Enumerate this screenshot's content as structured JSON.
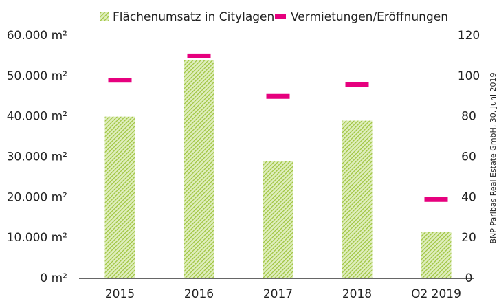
{
  "chart_data": {
    "type": "bar",
    "categories": [
      "2015",
      "2016",
      "2017",
      "2018",
      "Q2 2019"
    ],
    "series": [
      {
        "name": "Flächenumsatz in Citylagen",
        "color": "#9dc33b",
        "values": [
          40000,
          54000,
          29000,
          39000,
          11500
        ]
      },
      {
        "name": "Vermietungen/Eröffnungen",
        "color": "#e6007e",
        "axis": "y2",
        "values": [
          98,
          110,
          90,
          96,
          39
        ]
      }
    ],
    "ylim": [
      0,
      60000
    ],
    "yticks": [
      {
        "value": 0,
        "label": "0 m²"
      },
      {
        "value": 10000,
        "label": "10.000 m²"
      },
      {
        "value": 20000,
        "label": "20.000 m²"
      },
      {
        "value": 30000,
        "label": "30.000 m²"
      },
      {
        "value": 40000,
        "label": "40.000 m²"
      },
      {
        "value": 50000,
        "label": "50.000 m²"
      },
      {
        "value": 60000,
        "label": "60.000 m²"
      }
    ],
    "y2lim": [
      0,
      120
    ],
    "y2ticks": [
      0,
      20,
      40,
      60,
      80,
      100,
      120
    ],
    "source": "BNP Paribas Real Estate GmbH, 30. Juni 2019"
  }
}
